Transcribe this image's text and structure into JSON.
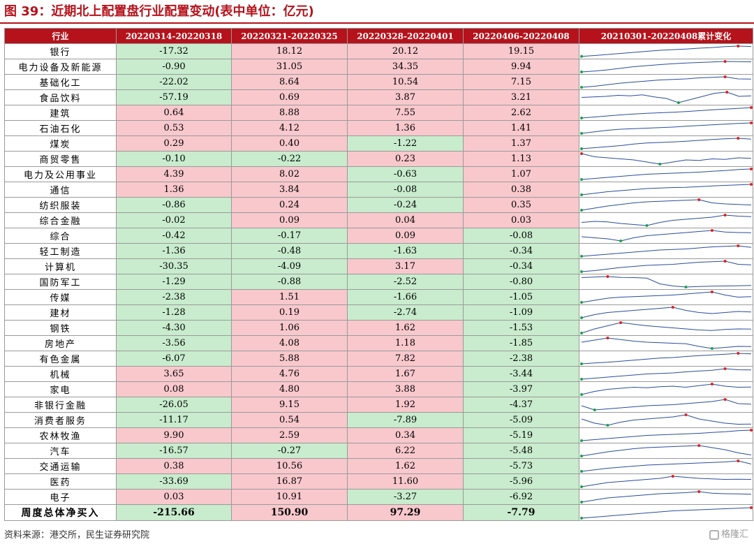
{
  "title": "图 39：近期北上配置盘行业配置变动(表中单位：亿元)",
  "headers": [
    "行业",
    "20220314-20220318",
    "20220321-20220325",
    "20220328-20220401",
    "20220406-20220408",
    "20210301-20220408累计变化"
  ],
  "rows": [
    {
      "name": "银行",
      "values": [
        "-17.32",
        "18.12",
        "20.12",
        "19.15"
      ],
      "trend": [
        0.02,
        0.1,
        0.2,
        0.3,
        0.4,
        0.5,
        0.6,
        0.66,
        0.72,
        0.8,
        0.86,
        0.95,
        1.0,
        0.96
      ]
    },
    {
      "name": "电力设备及新能源",
      "values": [
        "-0.90",
        "31.05",
        "34.35",
        "9.94"
      ],
      "trend": [
        0.0,
        0.08,
        0.2,
        0.35,
        0.5,
        0.6,
        0.7,
        0.78,
        0.85,
        0.9,
        0.95,
        1.0,
        0.98,
        0.97
      ]
    },
    {
      "name": "基础化工",
      "values": [
        "-22.02",
        "8.64",
        "10.54",
        "7.15"
      ],
      "trend": [
        0.0,
        0.1,
        0.25,
        0.4,
        0.5,
        0.6,
        0.7,
        0.75,
        0.8,
        0.9,
        0.95,
        1.0,
        0.8,
        0.78
      ]
    },
    {
      "name": "食品饮料",
      "values": [
        "-57.19",
        "0.69",
        "3.87",
        "3.21"
      ],
      "trend": [
        0.5,
        0.55,
        0.6,
        0.7,
        0.65,
        0.75,
        0.55,
        0.4,
        0.0,
        0.3,
        0.6,
        0.9,
        1.0,
        0.6,
        0.65
      ]
    },
    {
      "name": "建筑",
      "values": [
        "0.64",
        "8.88",
        "7.55",
        "2.62"
      ],
      "trend": [
        0.0,
        0.1,
        0.2,
        0.3,
        0.38,
        0.45,
        0.5,
        0.55,
        0.62,
        0.7,
        0.78,
        0.85,
        0.92,
        1.0
      ]
    },
    {
      "name": "石油石化",
      "values": [
        "0.53",
        "4.12",
        "1.36",
        "1.41"
      ],
      "trend": [
        0.0,
        0.15,
        0.3,
        0.4,
        0.45,
        0.5,
        0.55,
        0.6,
        0.68,
        0.75,
        0.82,
        0.88,
        0.95,
        1.0
      ]
    },
    {
      "name": "煤炭",
      "values": [
        "0.29",
        "0.40",
        "-1.22",
        "1.37"
      ],
      "trend": [
        0.0,
        0.1,
        0.2,
        0.3,
        0.45,
        0.55,
        0.6,
        0.65,
        0.72,
        0.8,
        0.88,
        0.95,
        1.0,
        0.92
      ]
    },
    {
      "name": "商贸零售",
      "values": [
        "-0.10",
        "-0.22",
        "0.23",
        "1.13"
      ],
      "trend": [
        1.0,
        0.7,
        0.6,
        0.5,
        0.4,
        0.2,
        0.0,
        0.2,
        0.4,
        0.35,
        0.5,
        0.45,
        0.6,
        0.55
      ]
    },
    {
      "name": "电力及公用事业",
      "values": [
        "4.39",
        "8.02",
        "-0.63",
        "1.07"
      ],
      "trend": [
        0.0,
        0.1,
        0.2,
        0.3,
        0.4,
        0.5,
        0.55,
        0.6,
        0.65,
        0.7,
        0.78,
        0.85,
        0.95,
        1.0
      ]
    },
    {
      "name": "通信",
      "values": [
        "1.36",
        "3.84",
        "-0.08",
        "0.38"
      ],
      "trend": [
        0.0,
        0.15,
        0.3,
        0.4,
        0.5,
        0.6,
        0.65,
        0.7,
        0.72,
        0.78,
        0.85,
        0.9,
        0.95,
        1.0
      ]
    },
    {
      "name": "纺织服装",
      "values": [
        "-0.86",
        "0.24",
        "-0.24",
        "0.35"
      ],
      "trend": [
        0.0,
        0.2,
        0.4,
        0.55,
        0.7,
        0.8,
        0.85,
        0.9,
        0.95,
        1.0,
        0.7,
        0.6,
        0.55,
        0.5
      ]
    },
    {
      "name": "综合金融",
      "values": [
        "-0.02",
        "0.09",
        "0.04",
        "0.03"
      ],
      "trend": [
        0.3,
        0.4,
        0.35,
        0.2,
        0.1,
        0.0,
        0.3,
        0.5,
        0.6,
        0.7,
        0.8,
        1.0,
        0.9,
        0.85
      ]
    },
    {
      "name": "综合",
      "values": [
        "-0.42",
        "-0.17",
        "0.09",
        "-0.08"
      ],
      "trend": [
        0.4,
        0.3,
        0.2,
        0.0,
        0.3,
        0.5,
        0.6,
        0.7,
        0.8,
        0.9,
        1.0,
        0.85,
        0.8,
        0.78
      ]
    },
    {
      "name": "轻工制造",
      "values": [
        "-1.36",
        "-0.48",
        "-1.63",
        "-0.34"
      ],
      "trend": [
        0.0,
        0.1,
        0.2,
        0.3,
        0.4,
        0.5,
        0.6,
        0.65,
        0.7,
        0.8,
        0.9,
        0.95,
        1.0,
        0.85
      ]
    },
    {
      "name": "计算机",
      "values": [
        "-30.35",
        "-4.09",
        "3.17",
        "-0.34"
      ],
      "trend": [
        0.0,
        0.1,
        0.25,
        0.4,
        0.5,
        0.6,
        0.65,
        0.7,
        0.8,
        0.9,
        0.95,
        1.0,
        0.7,
        0.65
      ]
    },
    {
      "name": "国防军工",
      "values": [
        "-1.29",
        "-0.88",
        "-2.52",
        "-0.80"
      ],
      "trend": [
        0.9,
        0.95,
        1.0,
        0.92,
        0.9,
        0.85,
        0.3,
        0.1,
        0.0,
        0.05,
        0.08,
        0.1,
        0.12,
        0.15
      ]
    },
    {
      "name": "传媒",
      "values": [
        "-2.38",
        "1.51",
        "-1.66",
        "-1.05"
      ],
      "trend": [
        0.0,
        0.2,
        0.4,
        0.5,
        0.55,
        0.6,
        0.65,
        0.7,
        0.8,
        0.9,
        1.0,
        0.7,
        0.5,
        0.55
      ]
    },
    {
      "name": "建材",
      "values": [
        "-1.28",
        "0.19",
        "-2.74",
        "-1.09"
      ],
      "trend": [
        0.0,
        0.3,
        0.5,
        0.6,
        0.7,
        0.8,
        0.9,
        1.0,
        0.7,
        0.5,
        0.4,
        0.5,
        0.6,
        0.55
      ]
    },
    {
      "name": "钢铁",
      "values": [
        "-4.30",
        "1.06",
        "1.62",
        "-1.53"
      ],
      "trend": [
        0.0,
        0.4,
        0.7,
        1.0,
        0.85,
        0.7,
        0.6,
        0.5,
        0.4,
        0.3,
        0.25,
        0.35,
        0.4,
        0.38
      ]
    },
    {
      "name": "房地产",
      "values": [
        "-3.56",
        "4.08",
        "1.18",
        "-1.85"
      ],
      "trend": [
        0.6,
        0.8,
        1.0,
        0.85,
        0.7,
        0.6,
        0.55,
        0.5,
        0.45,
        0.2,
        0.0,
        0.1,
        0.2,
        0.18
      ]
    },
    {
      "name": "有色金属",
      "values": [
        "-6.07",
        "5.88",
        "7.82",
        "-2.38"
      ],
      "trend": [
        0.0,
        0.08,
        0.15,
        0.25,
        0.35,
        0.45,
        0.55,
        0.6,
        0.7,
        0.78,
        0.85,
        0.92,
        1.0,
        0.95
      ]
    },
    {
      "name": "机械",
      "values": [
        "3.65",
        "4.76",
        "1.67",
        "-3.44"
      ],
      "trend": [
        0.0,
        0.1,
        0.2,
        0.3,
        0.4,
        0.5,
        0.55,
        0.6,
        0.7,
        0.78,
        0.85,
        1.0,
        0.9,
        0.88
      ]
    },
    {
      "name": "家电",
      "values": [
        "0.08",
        "4.80",
        "3.88",
        "-3.97"
      ],
      "trend": [
        0.0,
        0.3,
        0.5,
        0.6,
        0.7,
        0.65,
        0.75,
        0.8,
        0.7,
        0.85,
        1.0,
        0.8,
        0.7,
        0.72
      ]
    },
    {
      "name": "非银行金融",
      "values": [
        "-26.05",
        "9.15",
        "1.92",
        "-4.37"
      ],
      "trend": [
        0.4,
        0.0,
        0.1,
        0.2,
        0.3,
        0.4,
        0.45,
        0.5,
        0.6,
        0.7,
        0.8,
        1.0,
        0.6,
        0.55
      ]
    },
    {
      "name": "消费者服务",
      "values": [
        "-11.17",
        "0.54",
        "-7.89",
        "-5.09"
      ],
      "trend": [
        0.6,
        0.2,
        0.0,
        0.3,
        0.5,
        0.6,
        0.7,
        0.8,
        1.0,
        0.6,
        0.4,
        0.2,
        0.1,
        0.12
      ]
    },
    {
      "name": "农林牧渔",
      "values": [
        "9.90",
        "2.59",
        "0.34",
        "-5.19"
      ],
      "trend": [
        0.0,
        0.1,
        0.2,
        0.3,
        0.4,
        0.5,
        0.55,
        0.6,
        0.65,
        0.7,
        0.78,
        0.85,
        0.95,
        1.0
      ]
    },
    {
      "name": "汽车",
      "values": [
        "-16.57",
        "-0.27",
        "6.22",
        "-5.48"
      ],
      "trend": [
        0.0,
        0.2,
        0.4,
        0.55,
        0.7,
        0.8,
        0.85,
        0.9,
        0.95,
        1.0,
        0.8,
        0.6,
        0.3,
        0.1
      ]
    },
    {
      "name": "交通运输",
      "values": [
        "0.38",
        "10.56",
        "1.62",
        "-5.73"
      ],
      "trend": [
        0.0,
        0.15,
        0.3,
        0.4,
        0.5,
        0.6,
        0.65,
        0.7,
        0.75,
        0.8,
        0.85,
        0.9,
        1.0,
        0.7
      ]
    },
    {
      "name": "医药",
      "values": [
        "-33.69",
        "16.87",
        "11.60",
        "-5.96"
      ],
      "trend": [
        0.0,
        0.2,
        0.4,
        0.5,
        0.6,
        0.7,
        0.8,
        1.0,
        0.9,
        0.8,
        0.75,
        0.7,
        0.72,
        0.7
      ]
    },
    {
      "name": "电子",
      "values": [
        "0.03",
        "10.91",
        "-3.27",
        "-6.92"
      ],
      "trend": [
        0.0,
        0.2,
        0.4,
        0.5,
        0.6,
        0.7,
        0.8,
        0.85,
        0.9,
        1.0,
        0.85,
        0.8,
        0.78,
        0.75
      ]
    }
  ],
  "total": {
    "name": "周度总体净买入",
    "values": [
      "-215.66",
      "150.90",
      "97.29",
      "-7.79"
    ],
    "trend": [
      0.0,
      0.1,
      0.2,
      0.3,
      0.4,
      0.5,
      0.6,
      0.7,
      0.75,
      0.8,
      0.85,
      0.9,
      0.95,
      1.0
    ]
  },
  "colors": {
    "positive": "#f8c8cc",
    "negative": "#c8eccd",
    "header": "#b5121b",
    "line": "#2b4c9b",
    "max_marker": "#e02020",
    "min_marker": "#1aa34a"
  },
  "footer": "资料来源：港交所，民生证券研究院",
  "watermark": "格隆汇"
}
